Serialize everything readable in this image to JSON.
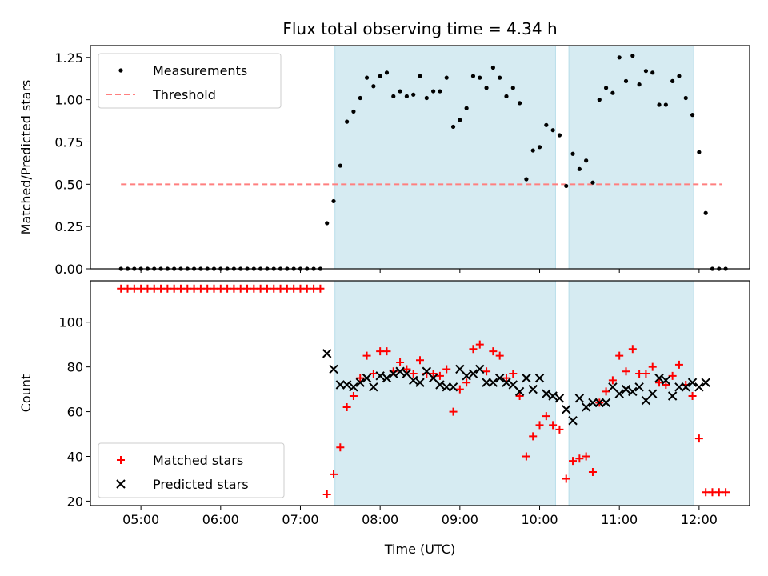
{
  "title": "Flux total observing time = 4.34 h",
  "colors": {
    "shade": "#add8e6",
    "measurement": "#000000",
    "threshold": "#ff7f7f",
    "matched": "#ff0000",
    "predicted": "#000000"
  },
  "chart_data": [
    {
      "type": "scatter",
      "panel": "top",
      "ylabel": "Matched/Predicted stars",
      "xlim": [
        "04:22",
        "12:38"
      ],
      "ylim": [
        0,
        1.32
      ],
      "yticks": [
        "0.00",
        "0.25",
        "0.50",
        "0.75",
        "1.00",
        "1.25"
      ],
      "shaded_intervals": [
        [
          "07:26",
          "10:12"
        ],
        [
          "10:22",
          "11:56"
        ]
      ],
      "legend": {
        "location": "top-left",
        "entries": [
          "Measurements",
          "Threshold"
        ]
      },
      "threshold": {
        "name": "Threshold",
        "value": 0.5,
        "x_range": [
          "04:45",
          "12:17"
        ]
      },
      "series": [
        {
          "name": "Measurements",
          "points": [
            [
              "04:45",
              0
            ],
            [
              "04:50",
              0
            ],
            [
              "04:55",
              0
            ],
            [
              "05:00",
              0
            ],
            [
              "05:05",
              0
            ],
            [
              "05:10",
              0
            ],
            [
              "05:15",
              0
            ],
            [
              "05:20",
              0
            ],
            [
              "05:25",
              0
            ],
            [
              "05:30",
              0
            ],
            [
              "05:35",
              0
            ],
            [
              "05:40",
              0
            ],
            [
              "05:45",
              0
            ],
            [
              "05:50",
              0
            ],
            [
              "05:55",
              0
            ],
            [
              "06:00",
              0
            ],
            [
              "06:05",
              0
            ],
            [
              "06:10",
              0
            ],
            [
              "06:15",
              0
            ],
            [
              "06:20",
              0
            ],
            [
              "06:25",
              0
            ],
            [
              "06:30",
              0
            ],
            [
              "06:35",
              0
            ],
            [
              "06:40",
              0
            ],
            [
              "06:45",
              0
            ],
            [
              "06:50",
              0
            ],
            [
              "06:55",
              0
            ],
            [
              "07:00",
              0
            ],
            [
              "07:05",
              0
            ],
            [
              "07:10",
              0
            ],
            [
              "07:15",
              0
            ],
            [
              "07:20",
              0.27
            ],
            [
              "07:25",
              0.4
            ],
            [
              "07:30",
              0.61
            ],
            [
              "07:35",
              0.87
            ],
            [
              "07:40",
              0.93
            ],
            [
              "07:45",
              1.01
            ],
            [
              "07:50",
              1.13
            ],
            [
              "07:55",
              1.08
            ],
            [
              "08:00",
              1.14
            ],
            [
              "08:05",
              1.16
            ],
            [
              "08:10",
              1.02
            ],
            [
              "08:15",
              1.05
            ],
            [
              "08:20",
              1.02
            ],
            [
              "08:25",
              1.03
            ],
            [
              "08:30",
              1.14
            ],
            [
              "08:35",
              1.01
            ],
            [
              "08:40",
              1.05
            ],
            [
              "08:45",
              1.05
            ],
            [
              "08:50",
              1.13
            ],
            [
              "08:55",
              0.84
            ],
            [
              "09:00",
              0.88
            ],
            [
              "09:05",
              0.95
            ],
            [
              "09:10",
              1.14
            ],
            [
              "09:15",
              1.13
            ],
            [
              "09:20",
              1.07
            ],
            [
              "09:25",
              1.19
            ],
            [
              "09:30",
              1.13
            ],
            [
              "09:35",
              1.02
            ],
            [
              "09:40",
              1.07
            ],
            [
              "09:45",
              0.98
            ],
            [
              "09:50",
              0.53
            ],
            [
              "09:55",
              0.7
            ],
            [
              "10:00",
              0.72
            ],
            [
              "10:05",
              0.85
            ],
            [
              "10:10",
              0.82
            ],
            [
              "10:15",
              0.79
            ],
            [
              "10:20",
              0.49
            ],
            [
              "10:25",
              0.68
            ],
            [
              "10:30",
              0.59
            ],
            [
              "10:35",
              0.64
            ],
            [
              "10:40",
              0.51
            ],
            [
              "10:45",
              1.0
            ],
            [
              "10:50",
              1.07
            ],
            [
              "10:55",
              1.04
            ],
            [
              "11:00",
              1.25
            ],
            [
              "11:05",
              1.11
            ],
            [
              "11:10",
              1.26
            ],
            [
              "11:15",
              1.09
            ],
            [
              "11:20",
              1.17
            ],
            [
              "11:25",
              1.16
            ],
            [
              "11:30",
              0.97
            ],
            [
              "11:35",
              0.97
            ],
            [
              "11:40",
              1.11
            ],
            [
              "11:45",
              1.14
            ],
            [
              "11:50",
              1.01
            ],
            [
              "11:55",
              0.91
            ],
            [
              "12:00",
              0.69
            ],
            [
              "12:05",
              0.33
            ],
            [
              "12:10",
              0
            ],
            [
              "12:15",
              0
            ],
            [
              "12:20",
              0
            ]
          ]
        }
      ]
    },
    {
      "type": "scatter",
      "panel": "bottom",
      "xlabel": "Time (UTC)",
      "ylabel": "Count",
      "xlim": [
        "04:22",
        "12:38"
      ],
      "ylim": [
        18,
        118.5
      ],
      "xticks": [
        "05:00",
        "06:00",
        "07:00",
        "08:00",
        "09:00",
        "10:00",
        "11:00",
        "12:00"
      ],
      "yticks": [
        "20",
        "40",
        "60",
        "80",
        "100"
      ],
      "shaded_intervals": [
        [
          "07:26",
          "10:12"
        ],
        [
          "10:22",
          "11:56"
        ]
      ],
      "legend": {
        "location": "bottom-left",
        "entries": [
          "Matched stars",
          "Predicted stars"
        ]
      },
      "series": [
        {
          "name": "Matched stars",
          "marker": "plus",
          "points": [
            [
              "04:45",
              115
            ],
            [
              "04:50",
              115
            ],
            [
              "04:55",
              115
            ],
            [
              "05:00",
              115
            ],
            [
              "05:05",
              115
            ],
            [
              "05:10",
              115
            ],
            [
              "05:15",
              115
            ],
            [
              "05:20",
              115
            ],
            [
              "05:25",
              115
            ],
            [
              "05:30",
              115
            ],
            [
              "05:35",
              115
            ],
            [
              "05:40",
              115
            ],
            [
              "05:45",
              115
            ],
            [
              "05:50",
              115
            ],
            [
              "05:55",
              115
            ],
            [
              "06:00",
              115
            ],
            [
              "06:05",
              115
            ],
            [
              "06:10",
              115
            ],
            [
              "06:15",
              115
            ],
            [
              "06:20",
              115
            ],
            [
              "06:25",
              115
            ],
            [
              "06:30",
              115
            ],
            [
              "06:35",
              115
            ],
            [
              "06:40",
              115
            ],
            [
              "06:45",
              115
            ],
            [
              "06:50",
              115
            ],
            [
              "06:55",
              115
            ],
            [
              "07:00",
              115
            ],
            [
              "07:05",
              115
            ],
            [
              "07:10",
              115
            ],
            [
              "07:15",
              115
            ],
            [
              "07:20",
              23
            ],
            [
              "07:25",
              32
            ],
            [
              "07:30",
              44
            ],
            [
              "07:35",
              62
            ],
            [
              "07:40",
              67
            ],
            [
              "07:45",
              75
            ],
            [
              "07:50",
              85
            ],
            [
              "07:55",
              77
            ],
            [
              "08:00",
              87
            ],
            [
              "08:05",
              87
            ],
            [
              "08:10",
              78
            ],
            [
              "08:15",
              82
            ],
            [
              "08:20",
              79
            ],
            [
              "08:25",
              77
            ],
            [
              "08:30",
              83
            ],
            [
              "08:35",
              77
            ],
            [
              "08:40",
              77
            ],
            [
              "08:45",
              76
            ],
            [
              "08:50",
              79
            ],
            [
              "08:55",
              60
            ],
            [
              "09:00",
              70
            ],
            [
              "09:05",
              73
            ],
            [
              "09:10",
              88
            ],
            [
              "09:15",
              90
            ],
            [
              "09:20",
              78
            ],
            [
              "09:25",
              87
            ],
            [
              "09:30",
              85
            ],
            [
              "09:35",
              75
            ],
            [
              "09:40",
              77
            ],
            [
              "09:45",
              67
            ],
            [
              "09:50",
              40
            ],
            [
              "09:55",
              49
            ],
            [
              "10:00",
              54
            ],
            [
              "10:05",
              58
            ],
            [
              "10:10",
              54
            ],
            [
              "10:15",
              52
            ],
            [
              "10:20",
              30
            ],
            [
              "10:25",
              38
            ],
            [
              "10:30",
              39
            ],
            [
              "10:35",
              40
            ],
            [
              "10:40",
              33
            ],
            [
              "10:45",
              64
            ],
            [
              "10:50",
              69
            ],
            [
              "10:55",
              74
            ],
            [
              "11:00",
              85
            ],
            [
              "11:05",
              78
            ],
            [
              "11:10",
              88
            ],
            [
              "11:15",
              77
            ],
            [
              "11:20",
              77
            ],
            [
              "11:25",
              80
            ],
            [
              "11:30",
              73
            ],
            [
              "11:35",
              72
            ],
            [
              "11:40",
              76
            ],
            [
              "11:45",
              81
            ],
            [
              "11:50",
              72
            ],
            [
              "11:55",
              67
            ],
            [
              "12:00",
              48
            ],
            [
              "12:05",
              24
            ],
            [
              "12:10",
              24
            ],
            [
              "12:15",
              24
            ],
            [
              "12:20",
              24
            ]
          ]
        },
        {
          "name": "Predicted stars",
          "marker": "x",
          "points": [
            [
              "07:20",
              86
            ],
            [
              "07:25",
              79
            ],
            [
              "07:30",
              72
            ],
            [
              "07:35",
              72
            ],
            [
              "07:40",
              71
            ],
            [
              "07:45",
              73
            ],
            [
              "07:50",
              75
            ],
            [
              "07:55",
              71
            ],
            [
              "08:00",
              76
            ],
            [
              "08:05",
              75
            ],
            [
              "08:10",
              77
            ],
            [
              "08:15",
              78
            ],
            [
              "08:20",
              77
            ],
            [
              "08:25",
              74
            ],
            [
              "08:30",
              73
            ],
            [
              "08:35",
              78
            ],
            [
              "08:40",
              75
            ],
            [
              "08:45",
              72
            ],
            [
              "08:50",
              71
            ],
            [
              "08:55",
              71
            ],
            [
              "09:00",
              79
            ],
            [
              "09:05",
              76
            ],
            [
              "09:10",
              77
            ],
            [
              "09:15",
              79
            ],
            [
              "09:20",
              73
            ],
            [
              "09:25",
              73
            ],
            [
              "09:30",
              75
            ],
            [
              "09:35",
              73
            ],
            [
              "09:40",
              72
            ],
            [
              "09:45",
              69
            ],
            [
              "09:50",
              75
            ],
            [
              "09:55",
              70
            ],
            [
              "10:00",
              75
            ],
            [
              "10:05",
              68
            ],
            [
              "10:10",
              67
            ],
            [
              "10:15",
              66
            ],
            [
              "10:20",
              61
            ],
            [
              "10:25",
              56
            ],
            [
              "10:30",
              66
            ],
            [
              "10:35",
              62
            ],
            [
              "10:40",
              64
            ],
            [
              "10:45",
              64
            ],
            [
              "10:50",
              64
            ],
            [
              "10:55",
              71
            ],
            [
              "11:00",
              68
            ],
            [
              "11:05",
              70
            ],
            [
              "11:10",
              69
            ],
            [
              "11:15",
              71
            ],
            [
              "11:20",
              65
            ],
            [
              "11:25",
              68
            ],
            [
              "11:30",
              75
            ],
            [
              "11:35",
              74
            ],
            [
              "11:40",
              67
            ],
            [
              "11:45",
              71
            ],
            [
              "11:50",
              71
            ],
            [
              "11:55",
              73
            ],
            [
              "12:00",
              71
            ],
            [
              "12:05",
              73
            ]
          ]
        }
      ]
    }
  ]
}
